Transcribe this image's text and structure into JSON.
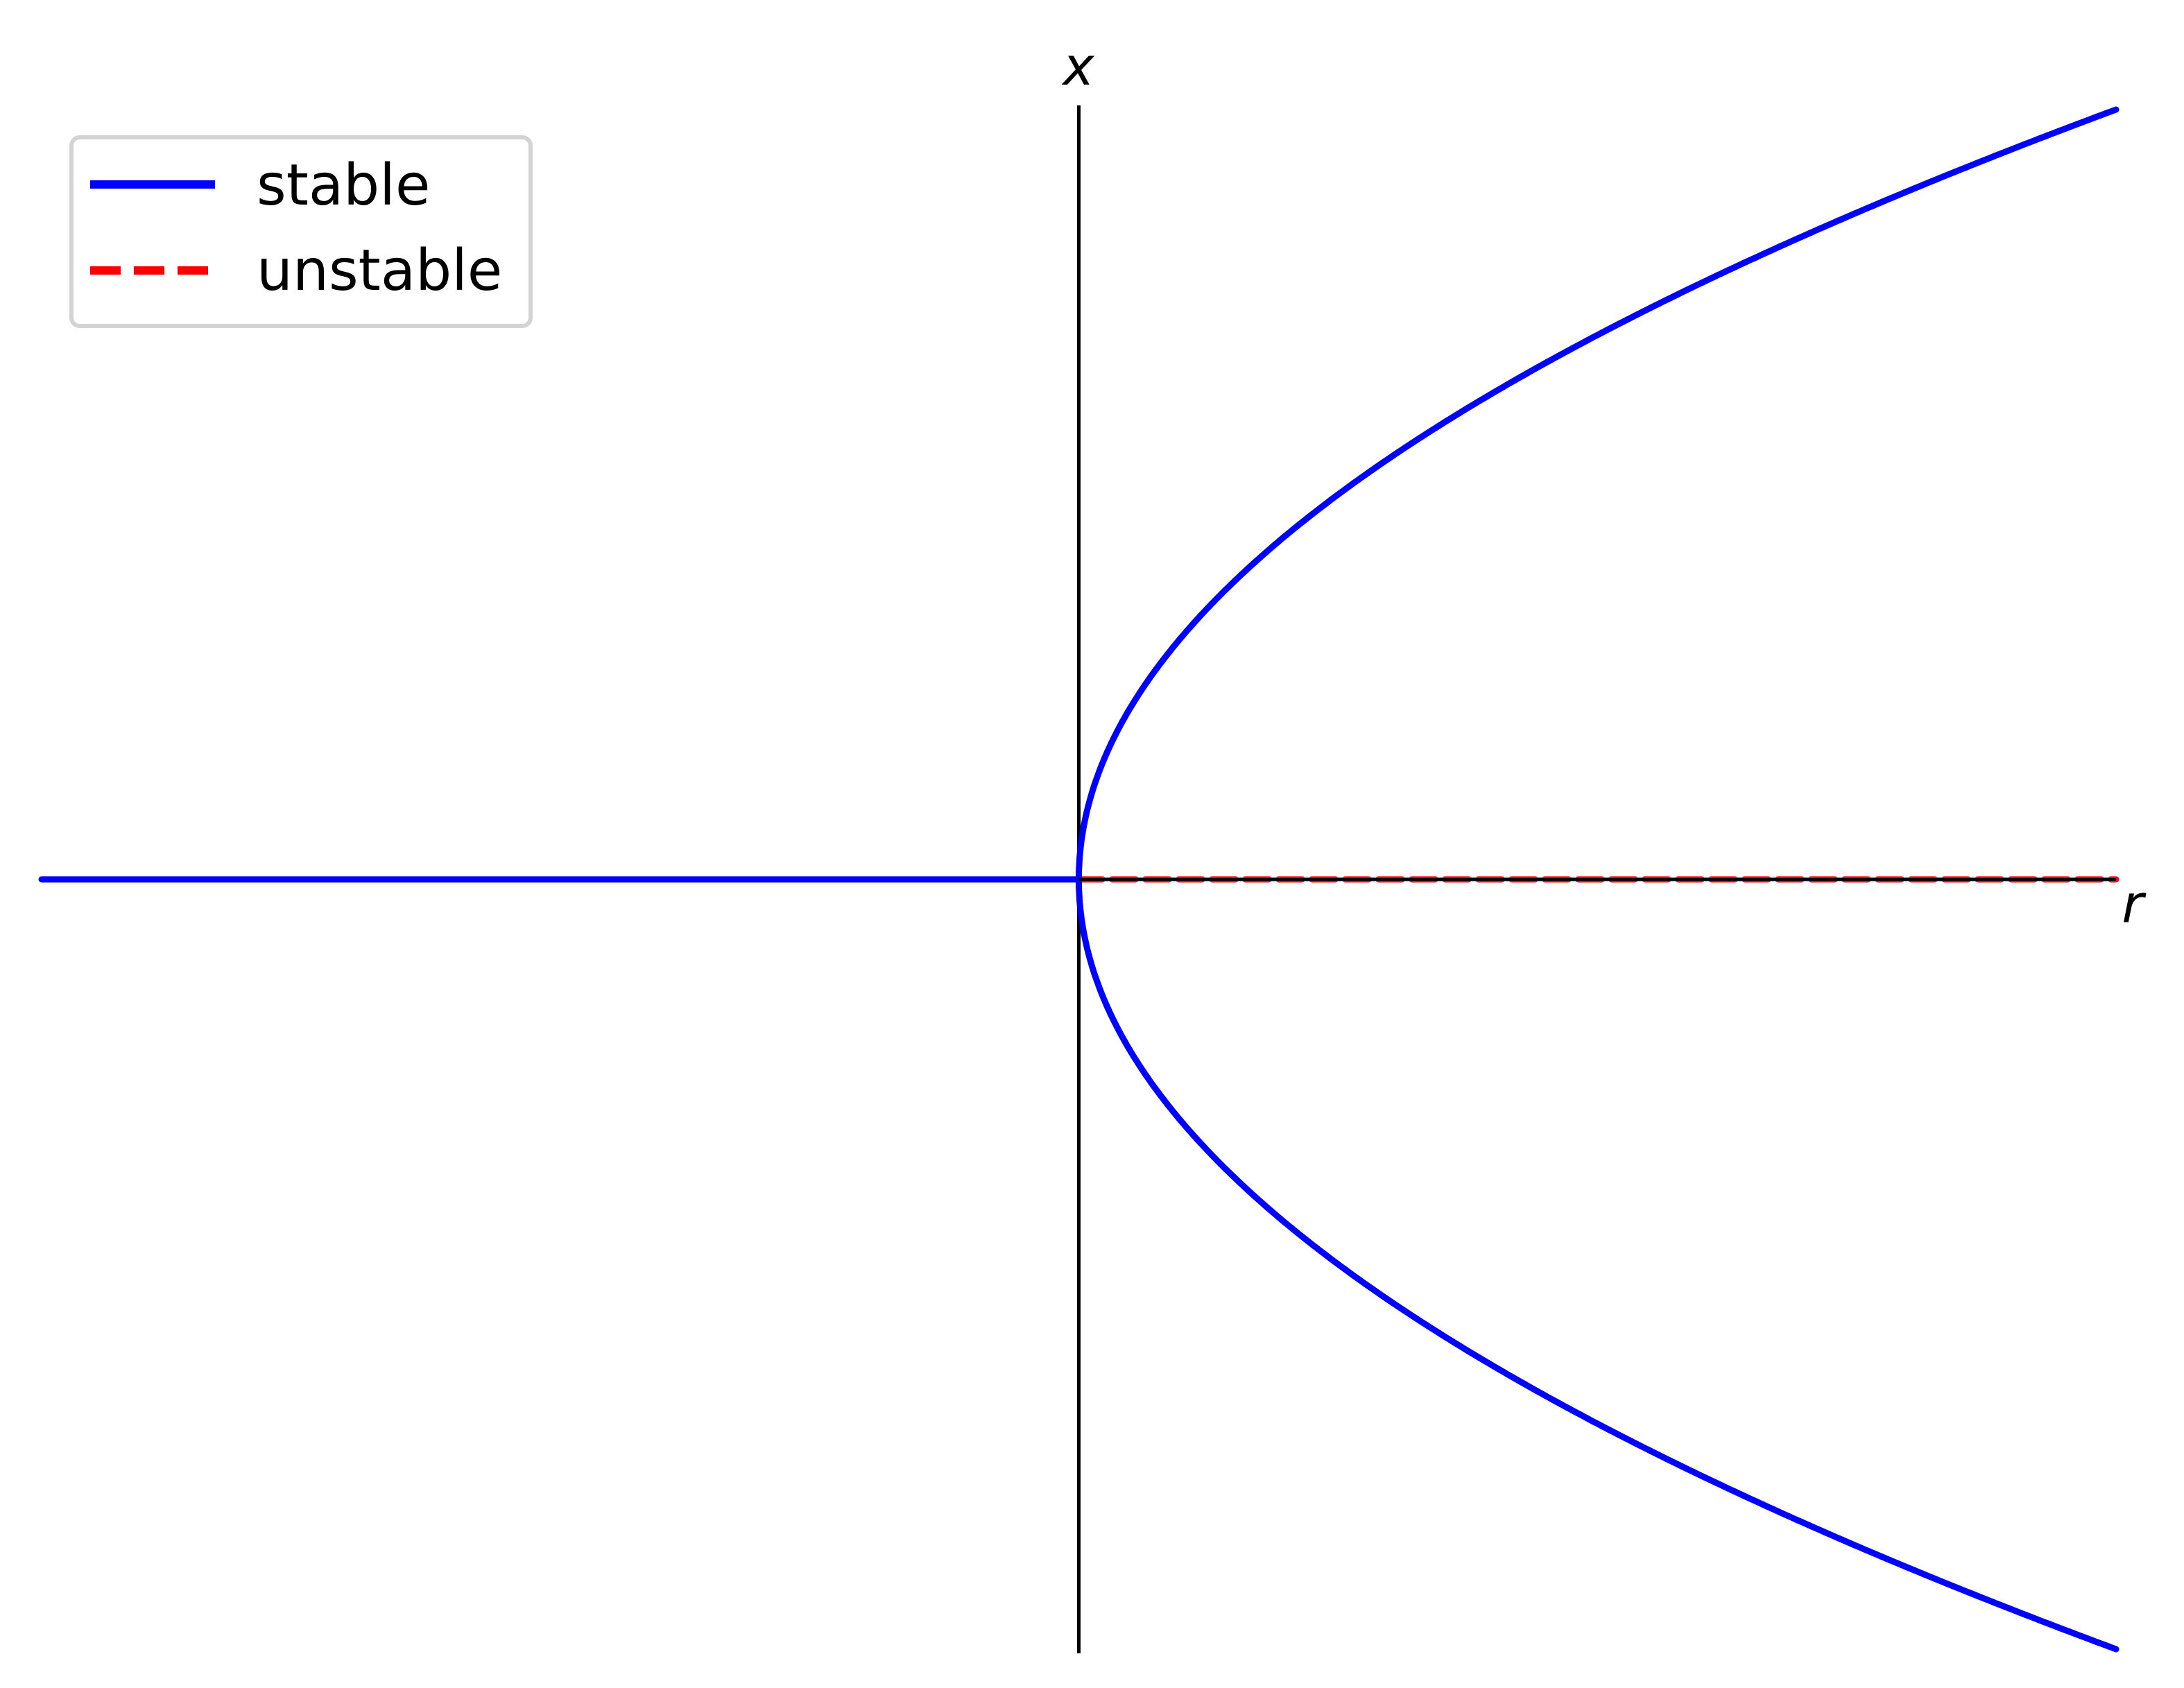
{
  "chart_data": {
    "type": "line",
    "title": "",
    "xlabel": "r",
    "ylabel": "x",
    "xlim": [
      -1,
      1
    ],
    "ylim": [
      -1,
      1
    ],
    "grid": false,
    "legend_position": "top-left",
    "colors": {
      "stable": "#0000ff",
      "unstable": "#ff0000",
      "axes": "#000000"
    },
    "legend": [
      {
        "label": "stable",
        "style": "solid",
        "color": "#0000ff"
      },
      {
        "label": "unstable",
        "style": "dashed",
        "color": "#ff0000"
      }
    ],
    "series": [
      {
        "name": "stable",
        "branch": "x=0 for r<0",
        "style": "solid",
        "color": "#0000ff",
        "x": [
          -1,
          0
        ],
        "y": [
          0,
          0
        ]
      },
      {
        "name": "unstable",
        "branch": "x=0 for r>0",
        "style": "dashed",
        "color": "#ff0000",
        "x": [
          0,
          1
        ],
        "y": [
          0,
          0
        ]
      },
      {
        "name": "stable",
        "branch": "x=+sqrt(r)",
        "style": "solid",
        "color": "#0000ff",
        "x": [
          0,
          0.01,
          0.05,
          0.1,
          0.2,
          0.3,
          0.4,
          0.5,
          0.6,
          0.7,
          0.8,
          0.9,
          1.0
        ],
        "y": [
          0,
          0.1,
          0.224,
          0.316,
          0.447,
          0.548,
          0.632,
          0.707,
          0.775,
          0.837,
          0.894,
          0.949,
          1.0
        ]
      },
      {
        "name": "stable",
        "branch": "x=-sqrt(r)",
        "style": "solid",
        "color": "#0000ff",
        "x": [
          0,
          0.01,
          0.05,
          0.1,
          0.2,
          0.3,
          0.4,
          0.5,
          0.6,
          0.7,
          0.8,
          0.9,
          1.0
        ],
        "y": [
          0,
          -0.1,
          -0.224,
          -0.316,
          -0.447,
          -0.548,
          -0.632,
          -0.707,
          -0.775,
          -0.837,
          -0.894,
          -0.949,
          -1.0
        ]
      }
    ]
  }
}
